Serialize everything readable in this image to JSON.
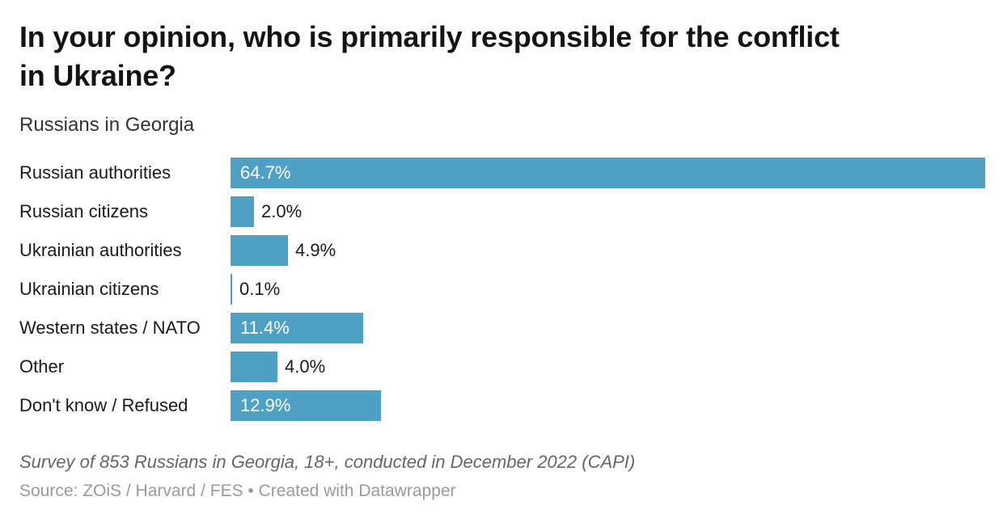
{
  "header": {
    "title": "In your opinion, who is primarily responsible for the conflict in Ukraine?",
    "title_lines": [
      "In your opinion, who is primarily responsible for the conflict",
      "in Ukraine?"
    ],
    "subtitle": "Russians in Georgia"
  },
  "chart_data": {
    "type": "bar",
    "orientation": "horizontal",
    "title": "In your opinion, who is primarily responsible for the conflict in Ukraine?",
    "subtitle": "Russians in Georgia",
    "categories": [
      "Russian authorities",
      "Russian citizens",
      "Ukrainian authorities",
      "Ukrainian citizens",
      "Western states / NATO",
      "Other",
      "Don't know / Refused"
    ],
    "values": [
      64.7,
      2.0,
      4.9,
      0.1,
      11.4,
      4.0,
      12.9
    ],
    "value_labels": [
      "64.7%",
      "2.0%",
      "4.9%",
      "0.1%",
      "11.4%",
      "4.0%",
      "12.9%"
    ],
    "unit": "%",
    "xlim": [
      0,
      64.7
    ],
    "grid": false,
    "legend": false,
    "bar_color": "#4fa0c5",
    "value_label_inside_color": "#ffffff",
    "value_label_outside_color": "#1a1a1a"
  },
  "footer": {
    "notes": "Survey of 853 Russians in Georgia, 18+, conducted in December 2022 (CAPI)",
    "source": "Source: ZOiS / Harvard / FES • Created with Datawrapper"
  },
  "colors": {
    "background": "#ffffff",
    "title": "#141414",
    "subtitle": "#333333",
    "category_label": "#1a1a1a",
    "notes": "#666666",
    "source": "#9a9a9a",
    "bar": "#4fa0c5"
  }
}
